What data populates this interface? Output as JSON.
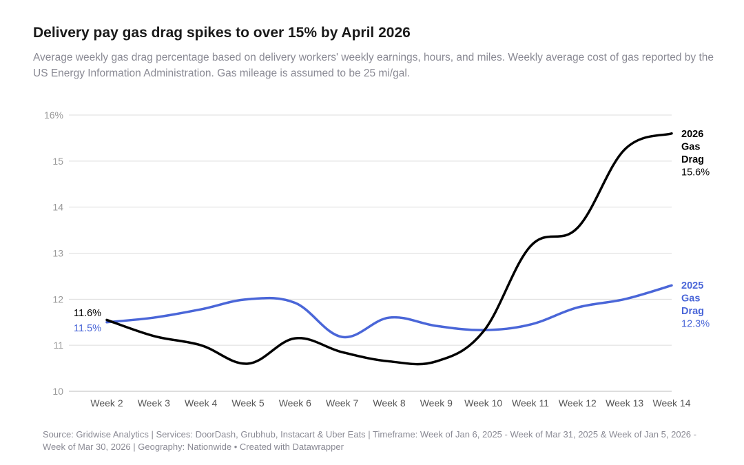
{
  "header": {
    "title": "Delivery pay gas drag spikes to over 15% by April 2026",
    "subtitle": "Average weekly gas drag percentage based on delivery workers' weekly earnings, hours, and miles. Weekly average cost of gas reported by the US Energy Information Administration. Gas mileage is assumed to be 25 mi/gal."
  },
  "footer": {
    "source": "Source: Gridwise Analytics | Services: DoorDash, Grubhub, Instacart & Uber Eats | Timeframe: Week of Jan 6, 2025 - Week of Mar 31, 2025 & Week of Jan 5, 2026 - Week of Mar 30, 2026 | Geography: Nationwide • Created with Datawrapper"
  },
  "chart_data": {
    "type": "line",
    "title": "Delivery pay gas drag spikes to over 15% by April 2026",
    "categories": [
      "Week 2",
      "Week 3",
      "Week 4",
      "Week 5",
      "Week 6",
      "Week 7",
      "Week 8",
      "Week 9",
      "Week 10",
      "Week 11",
      "Week 12",
      "Week 13",
      "Week 14"
    ],
    "yticks": [
      {
        "value": 10,
        "label": "10"
      },
      {
        "value": 11,
        "label": "11"
      },
      {
        "value": 12,
        "label": "12"
      },
      {
        "value": 13,
        "label": "13"
      },
      {
        "value": 14,
        "label": "14"
      },
      {
        "value": 15,
        "label": "15"
      },
      {
        "value": 16,
        "label": "16%"
      }
    ],
    "ylim": [
      10,
      16
    ],
    "grid": true,
    "series": [
      {
        "name": "2026 Gas Drag",
        "label_lines": [
          "2026",
          "Gas",
          "Drag"
        ],
        "color": "#000000",
        "values": [
          11.55,
          11.2,
          11.0,
          10.6,
          11.15,
          10.85,
          10.65,
          10.65,
          11.3,
          13.15,
          13.55,
          15.25,
          15.6
        ],
        "start_label": "11.6%",
        "end_label": "15.6%"
      },
      {
        "name": "2025 Gas Drag",
        "label_lines": [
          "2025",
          "Gas",
          "Drag"
        ],
        "color": "#4a66d8",
        "values": [
          11.5,
          11.6,
          11.78,
          12.0,
          11.92,
          11.18,
          11.6,
          11.42,
          11.33,
          11.45,
          11.82,
          12.0,
          12.3
        ],
        "start_label": "11.5%",
        "end_label": "12.3%"
      }
    ]
  }
}
